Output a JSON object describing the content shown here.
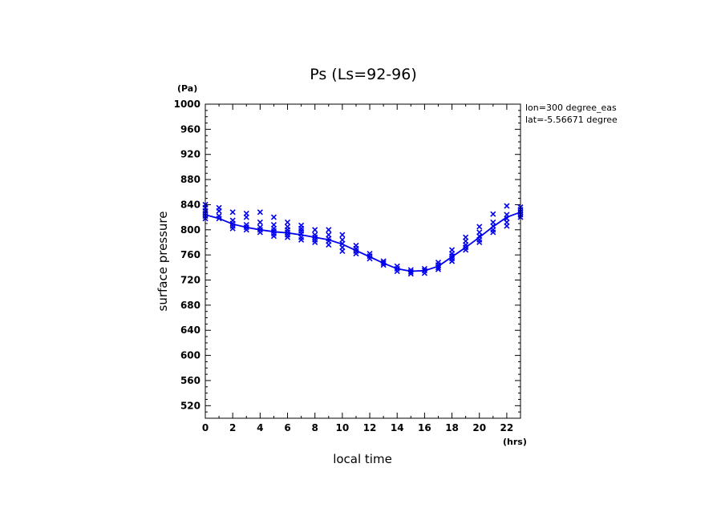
{
  "chart_data": {
    "type": "scatter",
    "title": "Ps (Ls=92-96)",
    "xlabel": "local time",
    "ylabel": "surface pressure",
    "xunit": "(hrs)",
    "yunit": "(Pa)",
    "xlim": [
      0,
      23
    ],
    "ylim": [
      500,
      1000
    ],
    "xticks": [
      0,
      2,
      4,
      6,
      8,
      10,
      12,
      14,
      16,
      18,
      20,
      22
    ],
    "yticks": [
      520,
      560,
      600,
      640,
      680,
      720,
      760,
      800,
      840,
      880,
      920,
      960,
      1000
    ],
    "annotations": [
      "lon=300 degree_eas",
      "lat=-5.56671 degree"
    ],
    "color": "#0000ee",
    "mean_line": {
      "x": [
        0,
        1,
        2,
        3,
        4,
        5,
        6,
        7,
        8,
        9,
        10,
        11,
        12,
        13,
        14,
        15,
        16,
        17,
        18,
        19,
        20,
        21,
        22,
        23
      ],
      "y": [
        824,
        818,
        809,
        804,
        800,
        797,
        795,
        792,
        788,
        784,
        777,
        767,
        757,
        747,
        738,
        734,
        735,
        742,
        757,
        772,
        788,
        805,
        820,
        828
      ]
    },
    "scatter": [
      {
        "x": 0,
        "y": [
          840,
          835,
          830,
          826,
          822,
          818
        ]
      },
      {
        "x": 1,
        "y": [
          835,
          830,
          822,
          818
        ]
      },
      {
        "x": 2,
        "y": [
          828,
          815,
          810,
          806,
          802
        ]
      },
      {
        "x": 3,
        "y": [
          826,
          820,
          808,
          804,
          800
        ]
      },
      {
        "x": 4,
        "y": [
          828,
          812,
          804,
          800,
          796
        ]
      },
      {
        "x": 5,
        "y": [
          820,
          808,
          802,
          798,
          794,
          790
        ]
      },
      {
        "x": 6,
        "y": [
          812,
          805,
          800,
          796,
          792,
          788
        ]
      },
      {
        "x": 7,
        "y": [
          807,
          802,
          798,
          794,
          788,
          784
        ]
      },
      {
        "x": 8,
        "y": [
          800,
          792,
          788,
          784,
          780
        ]
      },
      {
        "x": 9,
        "y": [
          800,
          792,
          786,
          782,
          776
        ]
      },
      {
        "x": 10,
        "y": [
          792,
          784,
          778,
          772,
          766
        ]
      },
      {
        "x": 11,
        "y": [
          775,
          770,
          766,
          762
        ]
      },
      {
        "x": 12,
        "y": [
          762,
          758,
          754
        ]
      },
      {
        "x": 13,
        "y": [
          750,
          747,
          744
        ]
      },
      {
        "x": 14,
        "y": [
          742,
          738,
          734
        ]
      },
      {
        "x": 15,
        "y": [
          736,
          733,
          730
        ]
      },
      {
        "x": 16,
        "y": [
          738,
          735,
          731
        ]
      },
      {
        "x": 17,
        "y": [
          748,
          744,
          740,
          737
        ]
      },
      {
        "x": 18,
        "y": [
          768,
          762,
          758,
          754,
          750
        ]
      },
      {
        "x": 19,
        "y": [
          788,
          782,
          776,
          772,
          768
        ]
      },
      {
        "x": 20,
        "y": [
          805,
          796,
          790,
          784,
          780
        ]
      },
      {
        "x": 21,
        "y": [
          825,
          812,
          806,
          800,
          796
        ]
      },
      {
        "x": 22,
        "y": [
          838,
          824,
          818,
          812,
          806
        ]
      },
      {
        "x": 23,
        "y": [
          836,
          832,
          828,
          824,
          820
        ]
      }
    ]
  }
}
